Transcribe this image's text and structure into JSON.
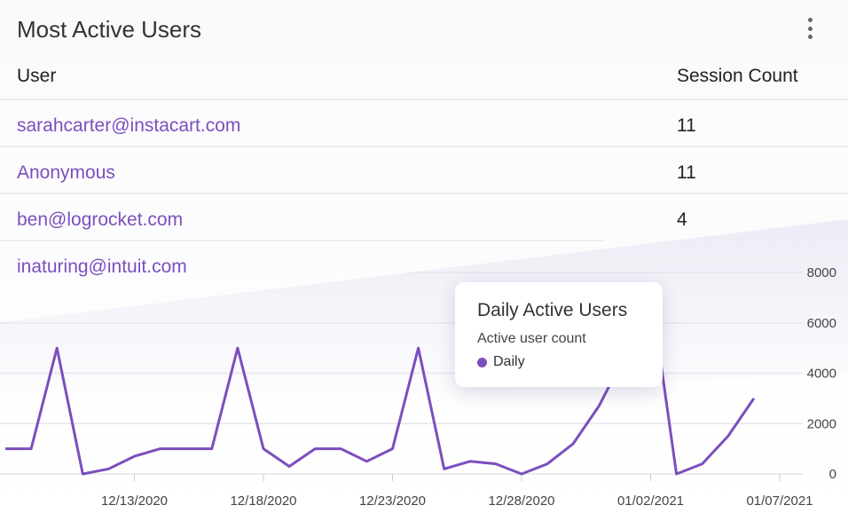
{
  "card": {
    "title": "Most Active Users",
    "menu_icon": "kebab-menu-icon"
  },
  "table": {
    "columns": [
      "User",
      "Session Count"
    ],
    "rows": [
      {
        "user": "sarahcarter@instacart.com",
        "count": "11"
      },
      {
        "user": "Anonymous",
        "count": "11"
      },
      {
        "user": "ben@logrocket.com",
        "count": "4"
      },
      {
        "user": "inaturing@intuit.com",
        "count": ""
      }
    ]
  },
  "tooltip": {
    "title": "Daily Active Users",
    "subtitle": "Active user count",
    "legend_label": "Daily"
  },
  "colors": {
    "accent": "#7b4fbd",
    "grid": "#e6e6ec",
    "text": "#333333",
    "link": "#7b4fbd"
  },
  "chart_data": {
    "type": "line",
    "title": "Daily Active Users",
    "x": [
      "12/08/2020",
      "12/09/2020",
      "12/10/2020",
      "12/11/2020",
      "12/12/2020",
      "12/13/2020",
      "12/14/2020",
      "12/15/2020",
      "12/16/2020",
      "12/17/2020",
      "12/18/2020",
      "12/19/2020",
      "12/20/2020",
      "12/21/2020",
      "12/22/2020",
      "12/23/2020",
      "12/24/2020",
      "12/25/2020",
      "12/26/2020",
      "12/27/2020",
      "12/28/2020",
      "12/29/2020",
      "12/30/2020",
      "12/31/2020",
      "01/01/2021",
      "01/02/2021",
      "01/03/2021",
      "01/04/2021",
      "01/05/2021",
      "01/06/2021",
      "01/07/2021"
    ],
    "xticks": [
      "12/13/2020",
      "12/18/2020",
      "12/23/2020",
      "12/28/2020",
      "01/02/2021",
      "01/07/2021"
    ],
    "series": [
      {
        "name": "Daily",
        "values": [
          1000,
          1000,
          5000,
          0,
          200,
          700,
          1000,
          1000,
          1000,
          5000,
          1000,
          300,
          1000,
          1000,
          500,
          1000,
          5000,
          200,
          500,
          400,
          0,
          400,
          1200,
          2700,
          4700,
          7300,
          0,
          400,
          1500,
          3000,
          null
        ]
      }
    ],
    "ylim": [
      0,
      8000
    ],
    "yticks": [
      0,
      2000,
      4000,
      6000,
      8000
    ],
    "grid": true,
    "axis_side": "right"
  }
}
